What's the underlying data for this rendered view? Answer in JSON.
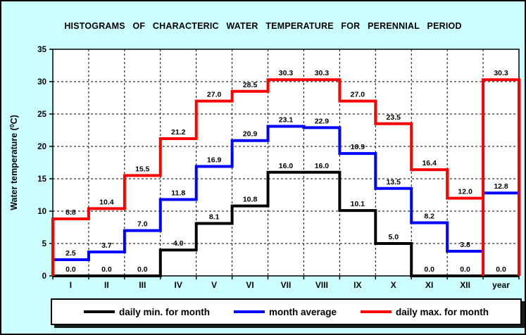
{
  "title": "HISTOGRAMS OF CHARACTERIC WATER TEMPERATURE FOR PERENNIAL PERIOD",
  "colors": {
    "background": "#ccffff",
    "plot_background": "#ffffff",
    "axis": "#000000",
    "grid": "#000000",
    "series_min": "#000000",
    "series_avg": "#0000ff",
    "series_max": "#ff0000"
  },
  "chart_data": {
    "type": "line",
    "subtype": "step-histogram",
    "title": "HISTOGRAMS OF CHARACTERIC WATER TEMPERATURE FOR PERENNIAL PERIOD",
    "categories": [
      "I",
      "II",
      "III",
      "IV",
      "V",
      "VI",
      "VII",
      "VIII",
      "IX",
      "X",
      "XI",
      "XII",
      "year"
    ],
    "series": [
      {
        "name": "daily min. for month",
        "color": "#000000",
        "values": [
          0.0,
          0.0,
          0.0,
          4.0,
          8.1,
          10.8,
          16.0,
          16.0,
          10.1,
          5.0,
          0.0,
          0.0,
          0.0
        ]
      },
      {
        "name": "month average",
        "color": "#0000ff",
        "values": [
          2.5,
          3.7,
          7.0,
          11.8,
          16.9,
          20.9,
          23.1,
          22.9,
          18.9,
          13.5,
          8.2,
          3.8,
          12.8
        ]
      },
      {
        "name": "daily max. for month",
        "color": "#ff0000",
        "values": [
          8.8,
          10.4,
          15.5,
          21.2,
          27.0,
          28.5,
          30.3,
          30.3,
          27.0,
          23.5,
          16.4,
          12.0,
          30.3
        ]
      }
    ],
    "ylabel_text": "Water temperature (",
    "ylabel_sup": "0",
    "ylabel_close": "C)",
    "xlabel": "",
    "ylim": [
      0,
      35
    ],
    "yticks": [
      0,
      5,
      10,
      15,
      20,
      25,
      30,
      35
    ],
    "grid": "dashed",
    "legend_position": "bottom",
    "value_label_decimals": 1
  },
  "legend": {
    "items": [
      {
        "label": "daily min. for month",
        "color": "#000000"
      },
      {
        "label": "month average",
        "color": "#0000ff"
      },
      {
        "label": "daily max. for month",
        "color": "#ff0000"
      }
    ]
  }
}
